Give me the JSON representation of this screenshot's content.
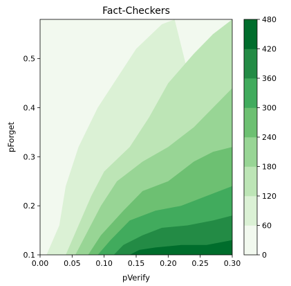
{
  "chart_data": {
    "type": "contour",
    "title": "Fact-Checkers",
    "xlabel": "pVerify",
    "ylabel": "pForget",
    "xlim": [
      0.0,
      0.3
    ],
    "ylim": [
      0.1,
      0.58
    ],
    "xticks": [
      0.0,
      0.05,
      0.1,
      0.15,
      0.2,
      0.25,
      0.3
    ],
    "xtick_labels": [
      "0.00",
      "0.05",
      "0.10",
      "0.15",
      "0.20",
      "0.25",
      "0.30"
    ],
    "yticks": [
      0.1,
      0.2,
      0.3,
      0.4,
      0.5
    ],
    "ytick_labels": [
      "0.1",
      "0.2",
      "0.3",
      "0.4",
      "0.5"
    ],
    "levels": [
      0,
      60,
      120,
      180,
      240,
      300,
      360,
      420,
      480
    ],
    "colorbar_tick_labels": [
      "0",
      "60",
      "120",
      "180",
      "240",
      "300",
      "360",
      "420",
      "480"
    ],
    "colormap": [
      "#f2f9ef",
      "#dbf1d5",
      "#bde5b6",
      "#98d595",
      "#6dc072",
      "#41ab5d",
      "#238b45",
      "#006d2c"
    ],
    "boundaries": [
      {
        "level": 60,
        "points": [
          [
            0.01,
            0.1
          ],
          [
            0.03,
            0.16
          ],
          [
            0.04,
            0.24
          ],
          [
            0.06,
            0.32
          ],
          [
            0.09,
            0.4
          ],
          [
            0.12,
            0.46
          ],
          [
            0.15,
            0.52
          ],
          [
            0.19,
            0.57
          ],
          [
            0.21,
            0.58
          ]
        ]
      },
      {
        "level": 120,
        "points": [
          [
            0.04,
            0.1
          ],
          [
            0.06,
            0.16
          ],
          [
            0.08,
            0.22
          ],
          [
            0.1,
            0.27
          ],
          [
            0.14,
            0.32
          ],
          [
            0.17,
            0.38
          ],
          [
            0.2,
            0.45
          ],
          [
            0.24,
            0.51
          ],
          [
            0.27,
            0.55
          ],
          [
            0.3,
            0.58
          ]
        ]
      },
      {
        "level": 180,
        "points": [
          [
            0.055,
            0.1
          ],
          [
            0.075,
            0.15
          ],
          [
            0.095,
            0.2
          ],
          [
            0.12,
            0.25
          ],
          [
            0.16,
            0.29
          ],
          [
            0.2,
            0.32
          ],
          [
            0.24,
            0.36
          ],
          [
            0.27,
            0.4
          ],
          [
            0.3,
            0.44
          ]
        ]
      },
      {
        "level": 240,
        "points": [
          [
            0.075,
            0.1
          ],
          [
            0.095,
            0.14
          ],
          [
            0.13,
            0.19
          ],
          [
            0.16,
            0.23
          ],
          [
            0.2,
            0.25
          ],
          [
            0.24,
            0.29
          ],
          [
            0.27,
            0.31
          ],
          [
            0.3,
            0.32
          ]
        ]
      },
      {
        "level": 300,
        "points": [
          [
            0.09,
            0.1
          ],
          [
            0.11,
            0.13
          ],
          [
            0.14,
            0.17
          ],
          [
            0.18,
            0.19
          ],
          [
            0.22,
            0.2
          ],
          [
            0.26,
            0.22
          ],
          [
            0.3,
            0.24
          ]
        ]
      },
      {
        "level": 360,
        "points": [
          [
            0.115,
            0.1
          ],
          [
            0.13,
            0.12
          ],
          [
            0.16,
            0.14
          ],
          [
            0.19,
            0.155
          ],
          [
            0.23,
            0.16
          ],
          [
            0.27,
            0.17
          ],
          [
            0.3,
            0.18
          ]
        ]
      },
      {
        "level": 420,
        "points": [
          [
            0.14,
            0.1
          ],
          [
            0.155,
            0.11
          ],
          [
            0.18,
            0.115
          ],
          [
            0.22,
            0.12
          ],
          [
            0.26,
            0.12
          ],
          [
            0.3,
            0.13
          ]
        ]
      }
    ]
  }
}
